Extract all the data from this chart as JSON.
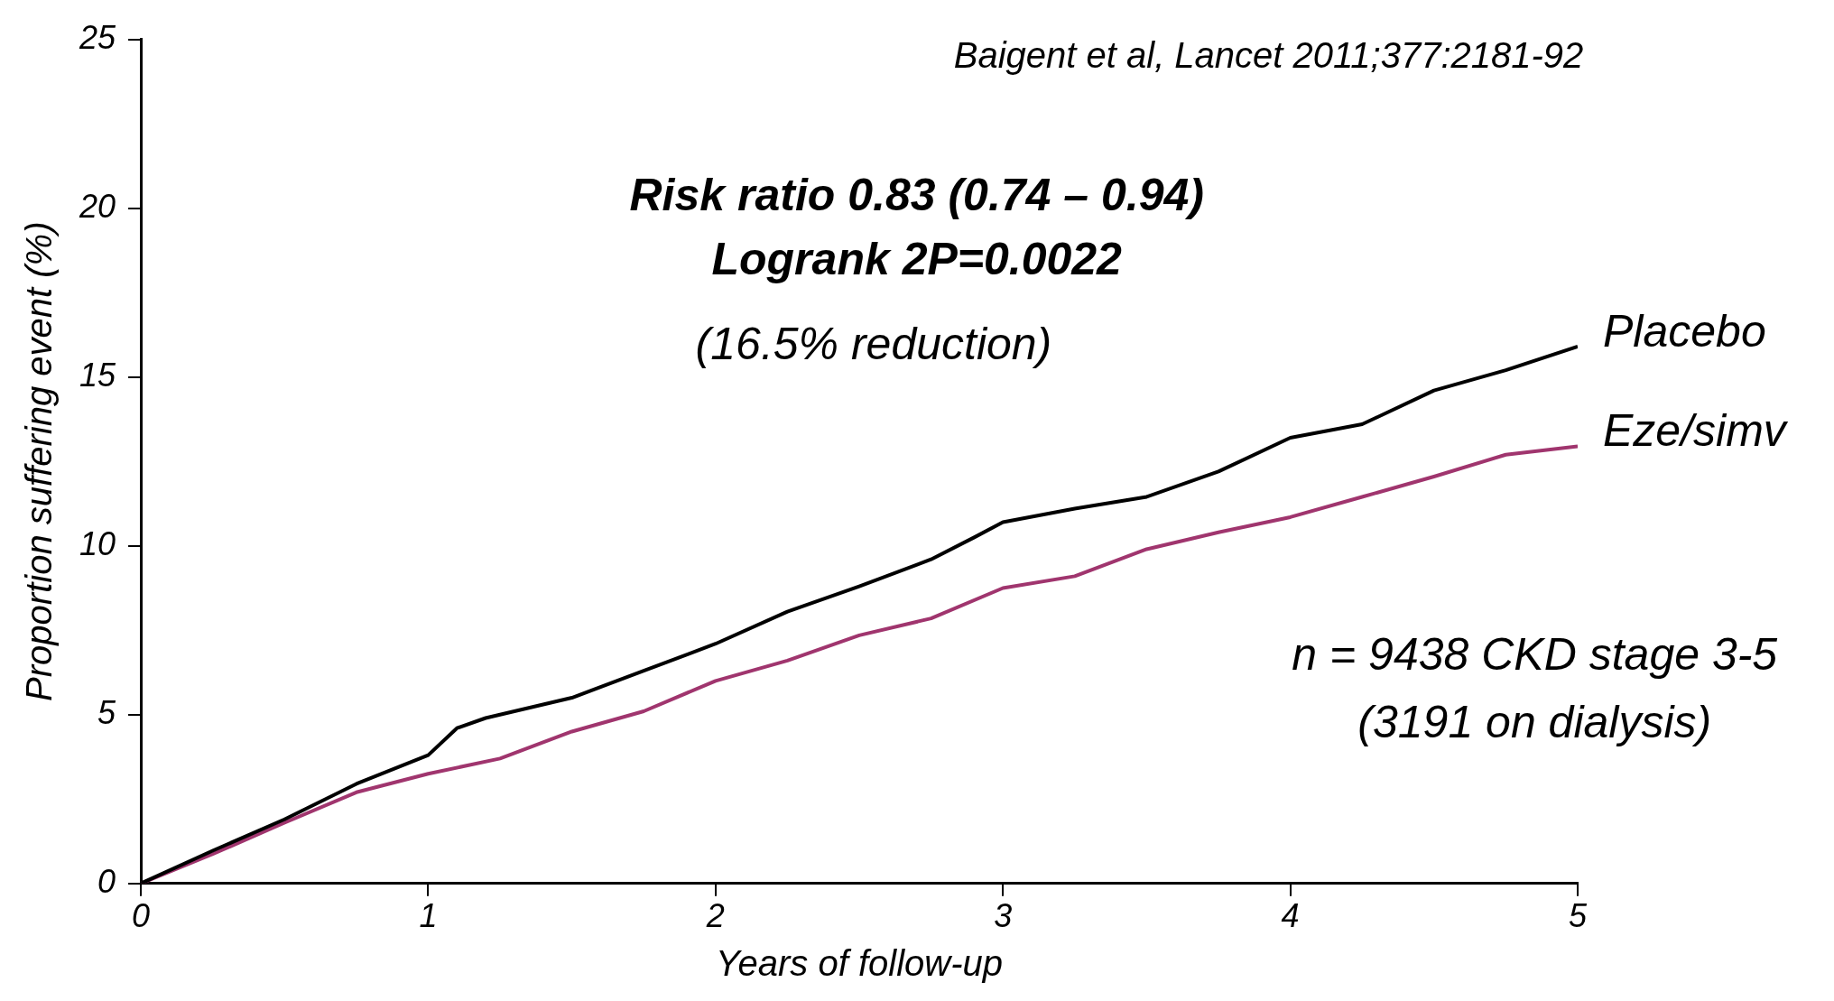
{
  "chart_data": {
    "type": "line",
    "xlabel": "Years of follow-up",
    "ylabel": "Proportion suffering event (%)",
    "xlim": [
      0,
      5
    ],
    "xticks": [
      0,
      1,
      2,
      3,
      4,
      5
    ],
    "ylim": [
      0,
      25
    ],
    "yticks": [
      0,
      5,
      10,
      15,
      20,
      25
    ],
    "grid": false,
    "legend": false,
    "marker": "none",
    "line_style": "solid",
    "x": [
      0,
      0.25,
      0.5,
      0.75,
      1,
      1.1,
      1.2,
      1.5,
      1.75,
      2,
      2.25,
      2.5,
      2.75,
      2.9,
      3,
      3.25,
      3.5,
      3.75,
      4,
      4.25,
      4.5,
      4.75,
      5
    ],
    "series": [
      {
        "name": "Placebo",
        "color": "#000000",
        "values": [
          0,
          0.97,
          1.9,
          2.95,
          3.8,
          4.6,
          4.9,
          5.5,
          6.3,
          7.1,
          8.05,
          8.8,
          9.6,
          10.25,
          10.7,
          11.1,
          11.45,
          12.2,
          13.2,
          13.6,
          14.6,
          15.2,
          15.9
        ]
      },
      {
        "name": "Eze/simv",
        "color": "#a0356e",
        "x": [
          0,
          0.25,
          0.5,
          0.75,
          1,
          1.25,
          1.5,
          1.75,
          2,
          2.25,
          2.5,
          2.75,
          3,
          3.25,
          3.5,
          3.75,
          4,
          4.25,
          4.5,
          4.75,
          5
        ],
        "values": [
          0,
          0.87,
          1.8,
          2.7,
          3.25,
          3.7,
          4.5,
          5.1,
          6.0,
          6.6,
          7.35,
          7.85,
          8.75,
          9.1,
          9.9,
          10.4,
          10.85,
          11.45,
          12.05,
          12.7,
          12.95
        ]
      }
    ],
    "annotations": [
      "Baigent et al, Lancet 2011;377:2181-92",
      "Risk ratio 0.83 (0.74 – 0.94)",
      "Logrank 2P=0.0022",
      "(16.5% reduction)",
      "n = 9438 CKD stage 3-5",
      "(3191 on dialysis)"
    ]
  }
}
